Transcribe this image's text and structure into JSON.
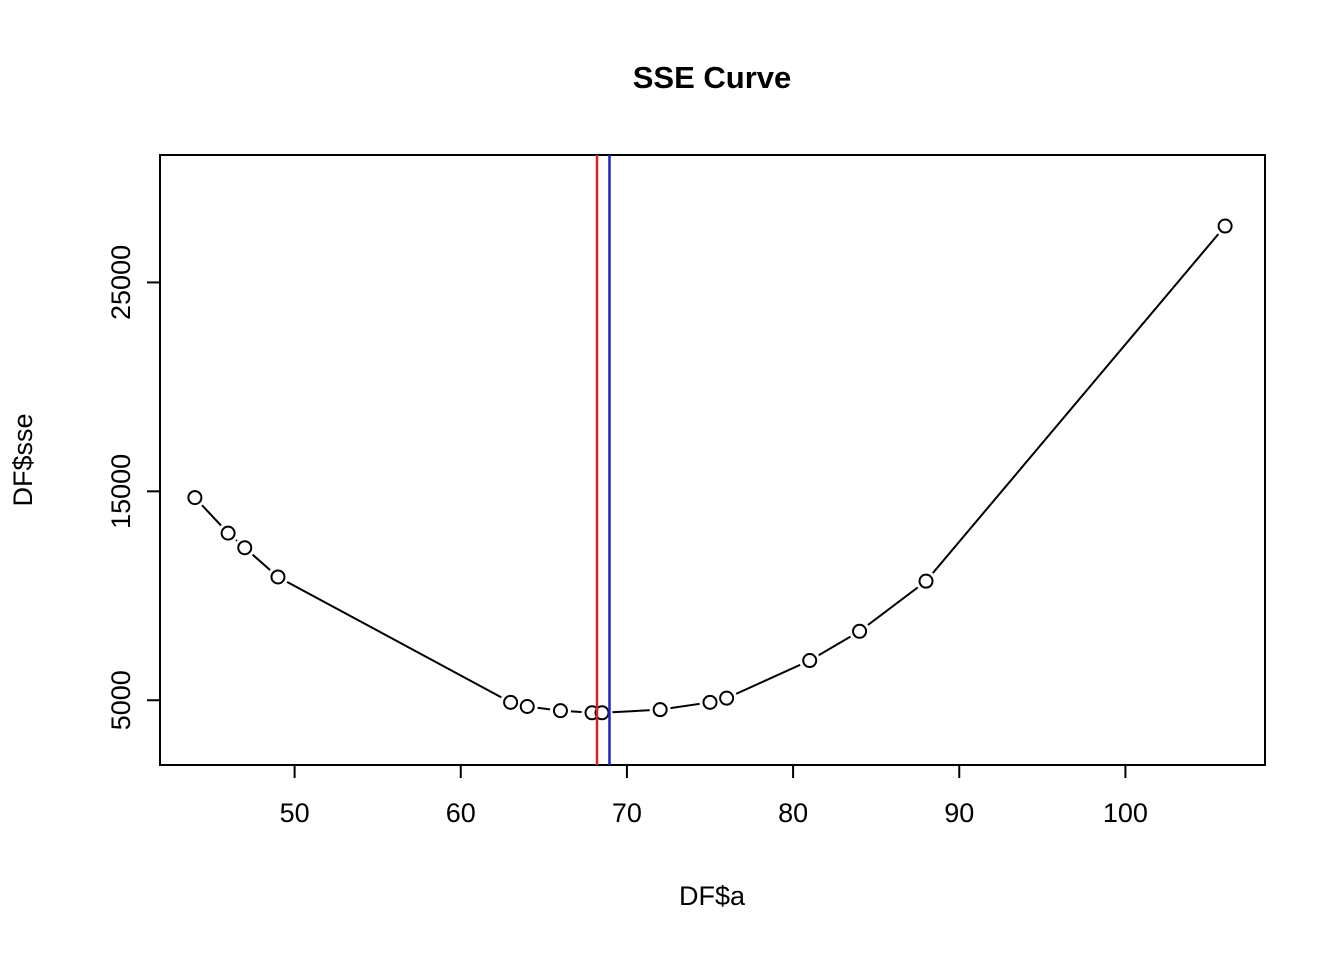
{
  "chart_data": {
    "type": "line",
    "title": "SSE Curve",
    "xlabel": "DF$a",
    "ylabel": "DF$sse",
    "marker": "open-circle",
    "grid": false,
    "legend": null,
    "x": [
      44,
      46,
      47,
      49,
      63,
      64,
      66,
      67.9,
      68.5,
      72,
      75,
      76,
      81,
      84,
      88,
      106
    ],
    "y": [
      14700,
      13000,
      12300,
      10900,
      4900,
      4700,
      4500,
      4400,
      4400,
      4550,
      4900,
      5100,
      6900,
      8300,
      10700,
      27700
    ],
    "x_ticks": [
      50,
      60,
      70,
      80,
      90,
      100
    ],
    "y_ticks": [
      5000,
      15000,
      25000
    ],
    "xlim": [
      41.9,
      108.4
    ],
    "ylim": [
      1900,
      31100
    ],
    "line_color": "#000000",
    "background_color": "#ffffff",
    "vlines": [
      {
        "x": 68.2,
        "color": "#d62222",
        "name": "red-vline"
      },
      {
        "x": 68.95,
        "color": "#2222cc",
        "name": "blue-vline"
      }
    ]
  }
}
